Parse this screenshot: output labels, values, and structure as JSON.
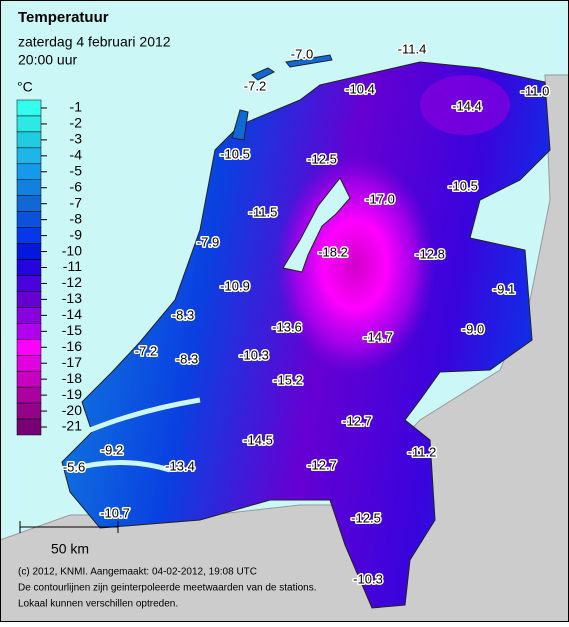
{
  "header": {
    "title": "Temperatuur",
    "date": "zaterdag 4 februari 2012",
    "time": "20:00 uur"
  },
  "legend": {
    "unit": "°C",
    "entries": [
      {
        "label": "-1",
        "color": "#33ffee"
      },
      {
        "label": "-2",
        "color": "#2ee8e4"
      },
      {
        "label": "-3",
        "color": "#22cce0"
      },
      {
        "label": "-4",
        "color": "#1fb4ea"
      },
      {
        "label": "-5",
        "color": "#1599ea"
      },
      {
        "label": "-6",
        "color": "#1180de"
      },
      {
        "label": "-7",
        "color": "#1068d4"
      },
      {
        "label": "-8",
        "color": "#0a52dc"
      },
      {
        "label": "-9",
        "color": "#0638e8"
      },
      {
        "label": "-10",
        "color": "#0418dc"
      },
      {
        "label": "-11",
        "color": "#2406dc"
      },
      {
        "label": "-12",
        "color": "#4a02dc"
      },
      {
        "label": "-13",
        "color": "#6600d2"
      },
      {
        "label": "-14",
        "color": "#8800de"
      },
      {
        "label": "-15",
        "color": "#b000ee"
      },
      {
        "label": "-16",
        "color": "#ff00ff"
      },
      {
        "label": "-17",
        "color": "#e000e0"
      },
      {
        "label": "-18",
        "color": "#c800c0"
      },
      {
        "label": "-19",
        "color": "#ac00a0"
      },
      {
        "label": "-20",
        "color": "#940088"
      },
      {
        "label": "-21",
        "color": "#760074"
      }
    ]
  },
  "stations": [
    {
      "label": "-7.0"
    },
    {
      "label": "-11.4"
    },
    {
      "label": "-7.2"
    },
    {
      "label": "-10.4"
    },
    {
      "label": "-14.4"
    },
    {
      "label": "-11.0"
    },
    {
      "label": "-10.5"
    },
    {
      "label": "-12.5"
    },
    {
      "label": "-17.0"
    },
    {
      "label": "-10.5"
    },
    {
      "label": "-11.5"
    },
    {
      "label": "-7.9"
    },
    {
      "label": "-18.2"
    },
    {
      "label": "-12.8"
    },
    {
      "label": "-9.1"
    },
    {
      "label": "-10.9"
    },
    {
      "label": "-8.3"
    },
    {
      "label": "-13.6"
    },
    {
      "label": "-9.0"
    },
    {
      "label": "-14.7"
    },
    {
      "label": "-7.2"
    },
    {
      "label": "-8.3"
    },
    {
      "label": "-10.3"
    },
    {
      "label": "-15.2"
    },
    {
      "label": "-12.7"
    },
    {
      "label": "-9.2"
    },
    {
      "label": "-11.2"
    },
    {
      "label": "-14.5"
    },
    {
      "label": "-12.7"
    },
    {
      "label": "-5.6"
    },
    {
      "label": "-13.4"
    },
    {
      "label": "-10.7"
    },
    {
      "label": "-12.5"
    },
    {
      "label": "-10.3"
    }
  ],
  "scale": {
    "label": "50 km"
  },
  "footer": [
    "(c) 2012, KNMI. Aangemaakt: 04-02-2012, 19:08 UTC",
    "De contourlijnen zijn geinterpoleerde meetwaarden van de stations.",
    "Lokaal kunnen verschillen optreden."
  ]
}
